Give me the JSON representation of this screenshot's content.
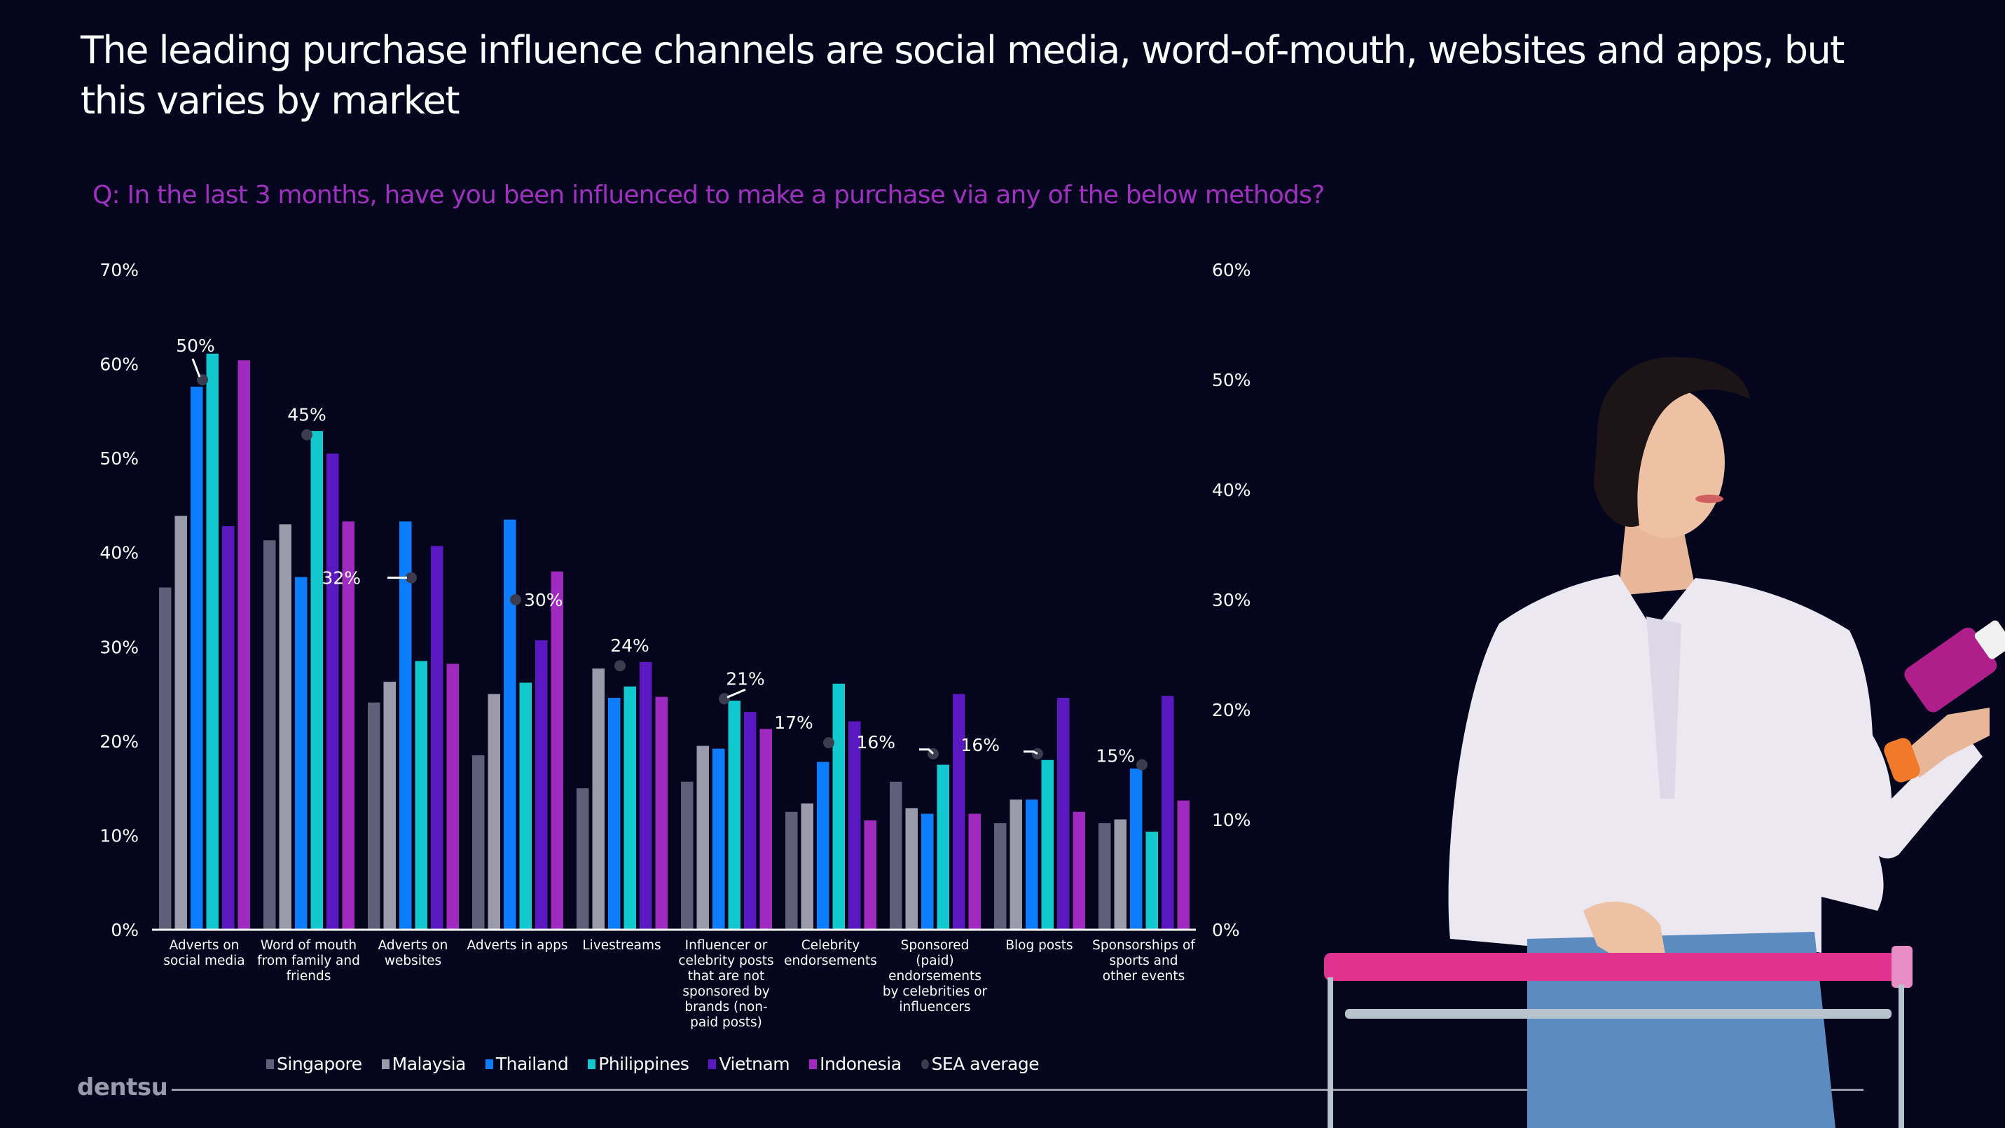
{
  "slide": {
    "title": "The leading purchase influence channels are social media, word-of-mouth, websites and apps, but this varies by market",
    "question": "Q: In the last 3 months, have you been influenced to make a purchase via any of the below methods?",
    "brand": "dentsu",
    "photo_description": "woman in white blouse holding a pink bottle and a pink shopping cart"
  },
  "colors": {
    "background": "#05051e",
    "Singapore": "#5f5f7a",
    "Malaysia": "#9a9aab",
    "Thailand": "#0d7dff",
    "Philippines": "#10c8ce",
    "Vietnam": "#5a18c0",
    "Indonesia": "#a02ac0",
    "SEA average": "#3c3c4e",
    "question_text": "#a030c0"
  },
  "chart_data": {
    "type": "bar",
    "title": "",
    "xlabel": "",
    "ylabel": "",
    "ylim": [
      0,
      70
    ],
    "y_ticks": [
      "0%",
      "10%",
      "20%",
      "30%",
      "40%",
      "50%",
      "60%",
      "70%"
    ],
    "y2lim": [
      0,
      60
    ],
    "y2_ticks": [
      "0%",
      "10%",
      "20%",
      "30%",
      "40%",
      "50%",
      "60%"
    ],
    "grid": false,
    "legend_position": "bottom",
    "categories": [
      "Adverts on social media",
      "Word of mouth from family and friends",
      "Adverts on websites",
      "Adverts in apps",
      "Livestreams",
      "Influencer or celebrity posts that are not sponsored by brands (non-paid posts)",
      "Celebrity endorsements",
      "Sponsored (paid) endorsements by celebrities or influencers",
      "Blog posts",
      "Sponsorships of sports and other events"
    ],
    "category_label_lines": [
      [
        "Adverts on",
        "social media"
      ],
      [
        "Word of mouth",
        "from family and",
        "friends"
      ],
      [
        "Adverts on",
        "websites"
      ],
      [
        "Adverts in apps"
      ],
      [
        "Livestreams"
      ],
      [
        "Influencer or",
        "celebrity posts",
        "that are not",
        "sponsored by",
        "brands (non-",
        "paid posts)"
      ],
      [
        "Celebrity",
        "endorsements"
      ],
      [
        "Sponsored",
        "(paid)",
        "endorsements",
        "by celebrities or",
        "influencers"
      ],
      [
        "Blog posts"
      ],
      [
        "Sponsorships of",
        "sports and",
        "other events"
      ]
    ],
    "series": [
      {
        "name": "Singapore",
        "axis": "left",
        "values": [
          36.3,
          41.3,
          24.1,
          18.5,
          15.0,
          15.7,
          12.5,
          15.7,
          11.3,
          11.3
        ]
      },
      {
        "name": "Malaysia",
        "axis": "left",
        "values": [
          43.9,
          43.0,
          26.3,
          25.0,
          27.7,
          19.5,
          13.4,
          12.9,
          13.8,
          11.7
        ]
      },
      {
        "name": "Thailand",
        "axis": "left",
        "values": [
          57.6,
          37.4,
          43.3,
          43.5,
          24.6,
          19.2,
          17.8,
          12.3,
          13.8,
          17.1
        ]
      },
      {
        "name": "Philippines",
        "axis": "left",
        "values": [
          61.1,
          52.9,
          28.5,
          26.2,
          25.8,
          24.3,
          26.1,
          17.5,
          18.0,
          10.4
        ]
      },
      {
        "name": "Vietnam",
        "axis": "left",
        "values": [
          42.8,
          50.5,
          40.7,
          30.7,
          28.4,
          23.1,
          22.1,
          25.0,
          24.6,
          24.8
        ]
      },
      {
        "name": "Indonesia",
        "axis": "left",
        "values": [
          60.4,
          43.3,
          28.2,
          38.0,
          24.7,
          21.3,
          11.6,
          12.3,
          12.5,
          13.7
        ]
      }
    ],
    "average_series": {
      "name": "SEA average",
      "axis": "right",
      "type": "scatter",
      "values": [
        50,
        45,
        32,
        30,
        24,
        21,
        17,
        16,
        16,
        15
      ],
      "labels": [
        "50%",
        "45%",
        "32%",
        "30%",
        "24%",
        "21%",
        "17%",
        "16%",
        "16%",
        "15%"
      ]
    }
  },
  "legend": [
    {
      "label": "Singapore",
      "shape": "square"
    },
    {
      "label": "Malaysia",
      "shape": "square"
    },
    {
      "label": "Thailand",
      "shape": "square"
    },
    {
      "label": "Philippines",
      "shape": "square"
    },
    {
      "label": "Vietnam",
      "shape": "square"
    },
    {
      "label": "Indonesia",
      "shape": "square"
    },
    {
      "label": "SEA average",
      "shape": "dot"
    }
  ]
}
